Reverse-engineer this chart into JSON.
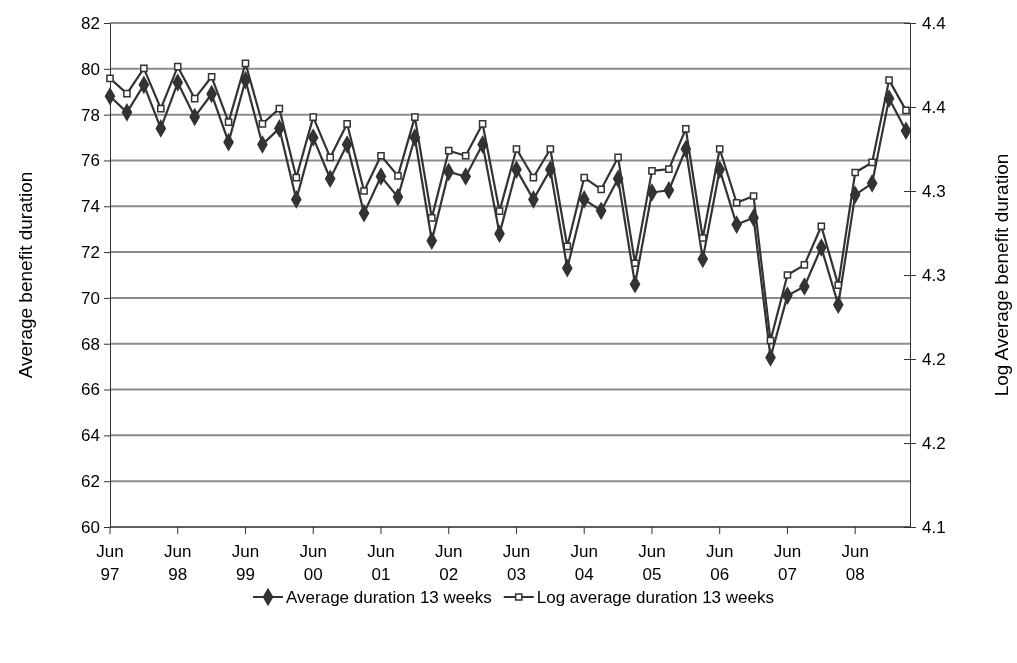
{
  "chart_data": {
    "type": "line",
    "ylabel": "Average benefit duration",
    "y2label": "Log Average benefit duration",
    "categories": [
      "Jun 97",
      null,
      null,
      null,
      "Jun 98",
      null,
      null,
      null,
      "Jun 99",
      null,
      null,
      null,
      "Jun 00",
      null,
      null,
      null,
      "Jun 01",
      null,
      null,
      null,
      "Jun 02",
      null,
      null,
      null,
      "Jun 03",
      null,
      null,
      null,
      "Jun 04",
      null,
      null,
      null,
      "Jun 05",
      null,
      null,
      null,
      "Jun 06",
      null,
      null,
      null,
      "Jun 07",
      null,
      null,
      null,
      "Jun 08",
      null,
      null,
      null
    ],
    "series": [
      {
        "name": "Average duration 13 weeks",
        "color": "#333333",
        "marker": "diamond",
        "values": [
          78.8,
          78.1,
          79.3,
          77.4,
          79.4,
          77.9,
          78.9,
          76.8,
          79.5,
          76.7,
          77.4,
          74.3,
          77.0,
          75.2,
          76.7,
          73.7,
          75.3,
          74.4,
          77.0,
          72.5,
          75.5,
          75.3,
          76.7,
          72.8,
          75.6,
          74.3,
          75.6,
          71.3,
          74.3,
          73.8,
          75.2,
          70.6,
          74.6,
          74.7,
          76.5,
          71.7,
          75.6,
          73.2,
          73.5,
          67.4,
          70.1,
          70.5,
          72.2,
          69.7,
          74.5,
          75.0,
          78.7,
          77.3
        ]
      },
      {
        "name": "Log average duration 13 weeks",
        "color": "#333333",
        "marker": "square",
        "axis": "y2",
        "values": [
          4.367,
          4.358,
          4.373,
          4.349,
          4.374,
          4.355,
          4.368,
          4.341,
          4.376,
          4.34,
          4.349,
          4.308,
          4.344,
          4.32,
          4.34,
          4.3,
          4.321,
          4.309,
          4.344,
          4.284,
          4.324,
          4.321,
          4.34,
          4.288,
          4.325,
          4.308,
          4.325,
          4.267,
          4.308,
          4.301,
          4.32,
          4.257,
          4.312,
          4.313,
          4.337,
          4.272,
          4.325,
          4.293,
          4.297,
          4.211,
          4.25,
          4.256,
          4.279,
          4.244,
          4.311,
          4.317,
          4.366,
          4.348
        ]
      }
    ],
    "ylim": [
      60,
      82
    ],
    "yticks": [
      60,
      62,
      64,
      66,
      68,
      70,
      72,
      74,
      76,
      78,
      80,
      82
    ],
    "y2lim": [
      4.1,
      4.4
    ],
    "y2ticks": [
      {
        "value": 4.1,
        "label": "4.1"
      },
      {
        "value": 4.15,
        "label": "4.2"
      },
      {
        "value": 4.2,
        "label": "4.2"
      },
      {
        "value": 4.25,
        "label": "4.3"
      },
      {
        "value": 4.3,
        "label": "4.3"
      },
      {
        "value": 4.35,
        "label": "4.4"
      },
      {
        "value": 4.4,
        "label": "4.4"
      }
    ],
    "grid": "y",
    "legend": "bottom",
    "line_style": "solid"
  }
}
